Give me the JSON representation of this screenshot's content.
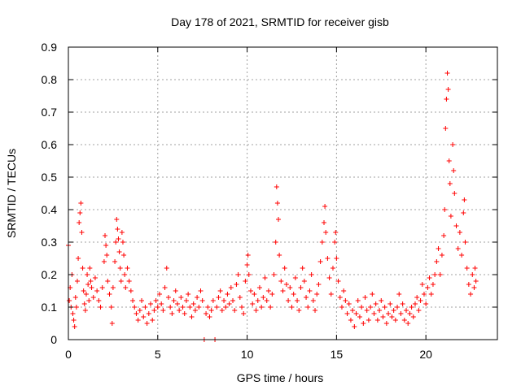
{
  "chart_data": {
    "type": "scatter",
    "title": "Day 178 of 2021, SRMTID for receiver gisb",
    "xlabel": "GPS time / hours",
    "ylabel": "SRMTID / TECUs",
    "xlim": [
      0,
      24
    ],
    "ylim": [
      0,
      0.9
    ],
    "x_ticks": [
      0,
      5,
      10,
      15,
      20
    ],
    "x_tick_labels": [
      "0",
      "5",
      "10",
      "15",
      "20"
    ],
    "y_ticks": [
      0,
      0.1,
      0.2,
      0.3,
      0.4,
      0.5,
      0.6,
      0.7,
      0.8,
      0.9
    ],
    "y_tick_labels": [
      "0",
      "0.1",
      "0.2",
      "0.3",
      "0.4",
      "0.5",
      "0.6",
      "0.7",
      "0.8",
      "0.9"
    ],
    "grid": true,
    "marker": "+",
    "series": [
      {
        "name": "SRMTID",
        "color": "#ff0000",
        "points": [
          [
            0.0,
            0.29
          ],
          [
            0.05,
            0.12
          ],
          [
            0.1,
            0.16
          ],
          [
            0.15,
            0.1
          ],
          [
            0.2,
            0.2
          ],
          [
            0.25,
            0.08
          ],
          [
            0.3,
            0.06
          ],
          [
            0.35,
            0.04
          ],
          [
            0.4,
            0.13
          ],
          [
            0.45,
            0.1
          ],
          [
            0.5,
            0.18
          ],
          [
            0.55,
            0.25
          ],
          [
            0.6,
            0.36
          ],
          [
            0.65,
            0.39
          ],
          [
            0.7,
            0.42
          ],
          [
            0.75,
            0.33
          ],
          [
            0.8,
            0.22
          ],
          [
            0.85,
            0.15
          ],
          [
            0.9,
            0.11
          ],
          [
            0.95,
            0.09
          ],
          [
            1.0,
            0.14
          ],
          [
            1.05,
            0.2
          ],
          [
            1.1,
            0.17
          ],
          [
            1.15,
            0.12
          ],
          [
            1.2,
            0.22
          ],
          [
            1.25,
            0.18
          ],
          [
            1.3,
            0.16
          ],
          [
            1.4,
            0.13
          ],
          [
            1.5,
            0.19
          ],
          [
            1.6,
            0.15
          ],
          [
            1.7,
            0.12
          ],
          [
            1.8,
            0.1
          ],
          [
            1.9,
            0.16
          ],
          [
            2.0,
            0.24
          ],
          [
            2.05,
            0.32
          ],
          [
            2.1,
            0.29
          ],
          [
            2.15,
            0.26
          ],
          [
            2.2,
            0.18
          ],
          [
            2.3,
            0.14
          ],
          [
            2.4,
            0.1
          ],
          [
            2.45,
            0.05
          ],
          [
            2.5,
            0.16
          ],
          [
            2.6,
            0.24
          ],
          [
            2.65,
            0.3
          ],
          [
            2.7,
            0.37
          ],
          [
            2.75,
            0.34
          ],
          [
            2.8,
            0.31
          ],
          [
            2.85,
            0.27
          ],
          [
            2.9,
            0.22
          ],
          [
            2.95,
            0.18
          ],
          [
            3.0,
            0.33
          ],
          [
            3.05,
            0.3
          ],
          [
            3.1,
            0.26
          ],
          [
            3.15,
            0.2
          ],
          [
            3.2,
            0.16
          ],
          [
            3.3,
            0.22
          ],
          [
            3.4,
            0.18
          ],
          [
            3.5,
            0.15
          ],
          [
            3.6,
            0.12
          ],
          [
            3.7,
            0.1
          ],
          [
            3.8,
            0.08
          ],
          [
            3.9,
            0.06
          ],
          [
            4.0,
            0.09
          ],
          [
            4.1,
            0.12
          ],
          [
            4.2,
            0.07
          ],
          [
            4.3,
            0.1
          ],
          [
            4.4,
            0.05
          ],
          [
            4.5,
            0.08
          ],
          [
            4.6,
            0.11
          ],
          [
            4.7,
            0.06
          ],
          [
            4.8,
            0.09
          ],
          [
            4.9,
            0.12
          ],
          [
            5.0,
            0.1
          ],
          [
            5.1,
            0.14
          ],
          [
            5.2,
            0.11
          ],
          [
            5.3,
            0.09
          ],
          [
            5.4,
            0.16
          ],
          [
            5.5,
            0.22
          ],
          [
            5.6,
            0.13
          ],
          [
            5.7,
            0.1
          ],
          [
            5.8,
            0.08
          ],
          [
            5.9,
            0.12
          ],
          [
            6.0,
            0.15
          ],
          [
            6.1,
            0.11
          ],
          [
            6.2,
            0.09
          ],
          [
            6.3,
            0.13
          ],
          [
            6.4,
            0.1
          ],
          [
            6.5,
            0.08
          ],
          [
            6.6,
            0.12
          ],
          [
            6.7,
            0.14
          ],
          [
            6.8,
            0.1
          ],
          [
            6.9,
            0.07
          ],
          [
            7.0,
            0.11
          ],
          [
            7.1,
            0.09
          ],
          [
            7.2,
            0.13
          ],
          [
            7.3,
            0.1
          ],
          [
            7.4,
            0.15
          ],
          [
            7.5,
            0.12
          ],
          [
            7.6,
            0.0
          ],
          [
            7.7,
            0.08
          ],
          [
            7.8,
            0.1
          ],
          [
            7.9,
            0.07
          ],
          [
            8.0,
            0.09
          ],
          [
            8.1,
            0.12
          ],
          [
            8.2,
            0.0
          ],
          [
            8.3,
            0.1
          ],
          [
            8.4,
            0.13
          ],
          [
            8.5,
            0.15
          ],
          [
            8.6,
            0.09
          ],
          [
            8.7,
            0.12
          ],
          [
            8.8,
            0.1
          ],
          [
            8.9,
            0.14
          ],
          [
            9.0,
            0.11
          ],
          [
            9.1,
            0.16
          ],
          [
            9.2,
            0.12
          ],
          [
            9.3,
            0.09
          ],
          [
            9.4,
            0.17
          ],
          [
            9.5,
            0.2
          ],
          [
            9.6,
            0.13
          ],
          [
            9.7,
            0.1
          ],
          [
            9.8,
            0.08
          ],
          [
            9.9,
            0.18
          ],
          [
            10.0,
            0.23
          ],
          [
            10.05,
            0.26
          ],
          [
            10.1,
            0.2
          ],
          [
            10.2,
            0.15
          ],
          [
            10.3,
            0.11
          ],
          [
            10.4,
            0.14
          ],
          [
            10.5,
            0.09
          ],
          [
            10.6,
            0.12
          ],
          [
            10.7,
            0.16
          ],
          [
            10.8,
            0.1
          ],
          [
            10.9,
            0.13
          ],
          [
            11.0,
            0.19
          ],
          [
            11.1,
            0.12
          ],
          [
            11.2,
            0.15
          ],
          [
            11.3,
            0.1
          ],
          [
            11.4,
            0.14
          ],
          [
            11.5,
            0.2
          ],
          [
            11.6,
            0.3
          ],
          [
            11.65,
            0.47
          ],
          [
            11.7,
            0.42
          ],
          [
            11.75,
            0.37
          ],
          [
            11.8,
            0.26
          ],
          [
            11.9,
            0.18
          ],
          [
            12.0,
            0.15
          ],
          [
            12.1,
            0.22
          ],
          [
            12.2,
            0.17
          ],
          [
            12.3,
            0.12
          ],
          [
            12.4,
            0.16
          ],
          [
            12.5,
            0.1
          ],
          [
            12.6,
            0.14
          ],
          [
            12.7,
            0.19
          ],
          [
            12.8,
            0.12
          ],
          [
            12.9,
            0.09
          ],
          [
            13.0,
            0.16
          ],
          [
            13.1,
            0.22
          ],
          [
            13.2,
            0.18
          ],
          [
            13.3,
            0.13
          ],
          [
            13.4,
            0.1
          ],
          [
            13.5,
            0.15
          ],
          [
            13.6,
            0.2
          ],
          [
            13.7,
            0.12
          ],
          [
            13.8,
            0.09
          ],
          [
            13.9,
            0.14
          ],
          [
            14.0,
            0.17
          ],
          [
            14.1,
            0.24
          ],
          [
            14.2,
            0.3
          ],
          [
            14.3,
            0.36
          ],
          [
            14.35,
            0.41
          ],
          [
            14.4,
            0.33
          ],
          [
            14.5,
            0.25
          ],
          [
            14.6,
            0.19
          ],
          [
            14.7,
            0.14
          ],
          [
            14.8,
            0.22
          ],
          [
            14.9,
            0.3
          ],
          [
            14.95,
            0.33
          ],
          [
            15.0,
            0.25
          ],
          [
            15.1,
            0.18
          ],
          [
            15.2,
            0.13
          ],
          [
            15.3,
            0.1
          ],
          [
            15.4,
            0.15
          ],
          [
            15.5,
            0.12
          ],
          [
            15.6,
            0.08
          ],
          [
            15.7,
            0.11
          ],
          [
            15.8,
            0.06
          ],
          [
            15.9,
            0.09
          ],
          [
            16.0,
            0.04
          ],
          [
            16.1,
            0.08
          ],
          [
            16.2,
            0.12
          ],
          [
            16.3,
            0.07
          ],
          [
            16.4,
            0.1
          ],
          [
            16.5,
            0.05
          ],
          [
            16.6,
            0.13
          ],
          [
            16.7,
            0.09
          ],
          [
            16.8,
            0.06
          ],
          [
            16.9,
            0.1
          ],
          [
            17.0,
            0.14
          ],
          [
            17.1,
            0.08
          ],
          [
            17.2,
            0.11
          ],
          [
            17.3,
            0.06
          ],
          [
            17.4,
            0.09
          ],
          [
            17.5,
            0.12
          ],
          [
            17.6,
            0.07
          ],
          [
            17.7,
            0.1
          ],
          [
            17.8,
            0.05
          ],
          [
            17.9,
            0.08
          ],
          [
            18.0,
            0.11
          ],
          [
            18.1,
            0.07
          ],
          [
            18.2,
            0.09
          ],
          [
            18.3,
            0.06
          ],
          [
            18.4,
            0.1
          ],
          [
            18.5,
            0.14
          ],
          [
            18.6,
            0.08
          ],
          [
            18.7,
            0.11
          ],
          [
            18.8,
            0.06
          ],
          [
            18.9,
            0.09
          ],
          [
            19.0,
            0.05
          ],
          [
            19.1,
            0.08
          ],
          [
            19.2,
            0.1
          ],
          [
            19.3,
            0.07
          ],
          [
            19.4,
            0.11
          ],
          [
            19.5,
            0.13
          ],
          [
            19.6,
            0.09
          ],
          [
            19.7,
            0.12
          ],
          [
            19.8,
            0.17
          ],
          [
            19.9,
            0.14
          ],
          [
            20.0,
            0.11
          ],
          [
            20.1,
            0.16
          ],
          [
            20.2,
            0.19
          ],
          [
            20.3,
            0.14
          ],
          [
            20.4,
            0.17
          ],
          [
            20.5,
            0.2
          ],
          [
            20.6,
            0.24
          ],
          [
            20.7,
            0.28
          ],
          [
            20.8,
            0.2
          ],
          [
            20.9,
            0.26
          ],
          [
            21.0,
            0.32
          ],
          [
            21.05,
            0.4
          ],
          [
            21.1,
            0.65
          ],
          [
            21.15,
            0.74
          ],
          [
            21.2,
            0.82
          ],
          [
            21.25,
            0.77
          ],
          [
            21.3,
            0.55
          ],
          [
            21.35,
            0.48
          ],
          [
            21.4,
            0.38
          ],
          [
            21.5,
            0.6
          ],
          [
            21.55,
            0.52
          ],
          [
            21.6,
            0.45
          ],
          [
            21.7,
            0.35
          ],
          [
            21.8,
            0.28
          ],
          [
            21.9,
            0.33
          ],
          [
            22.0,
            0.26
          ],
          [
            22.1,
            0.39
          ],
          [
            22.15,
            0.43
          ],
          [
            22.2,
            0.3
          ],
          [
            22.3,
            0.22
          ],
          [
            22.4,
            0.17
          ],
          [
            22.5,
            0.14
          ],
          [
            22.6,
            0.2
          ],
          [
            22.7,
            0.16
          ],
          [
            22.75,
            0.22
          ],
          [
            22.8,
            0.18
          ]
        ]
      }
    ]
  }
}
